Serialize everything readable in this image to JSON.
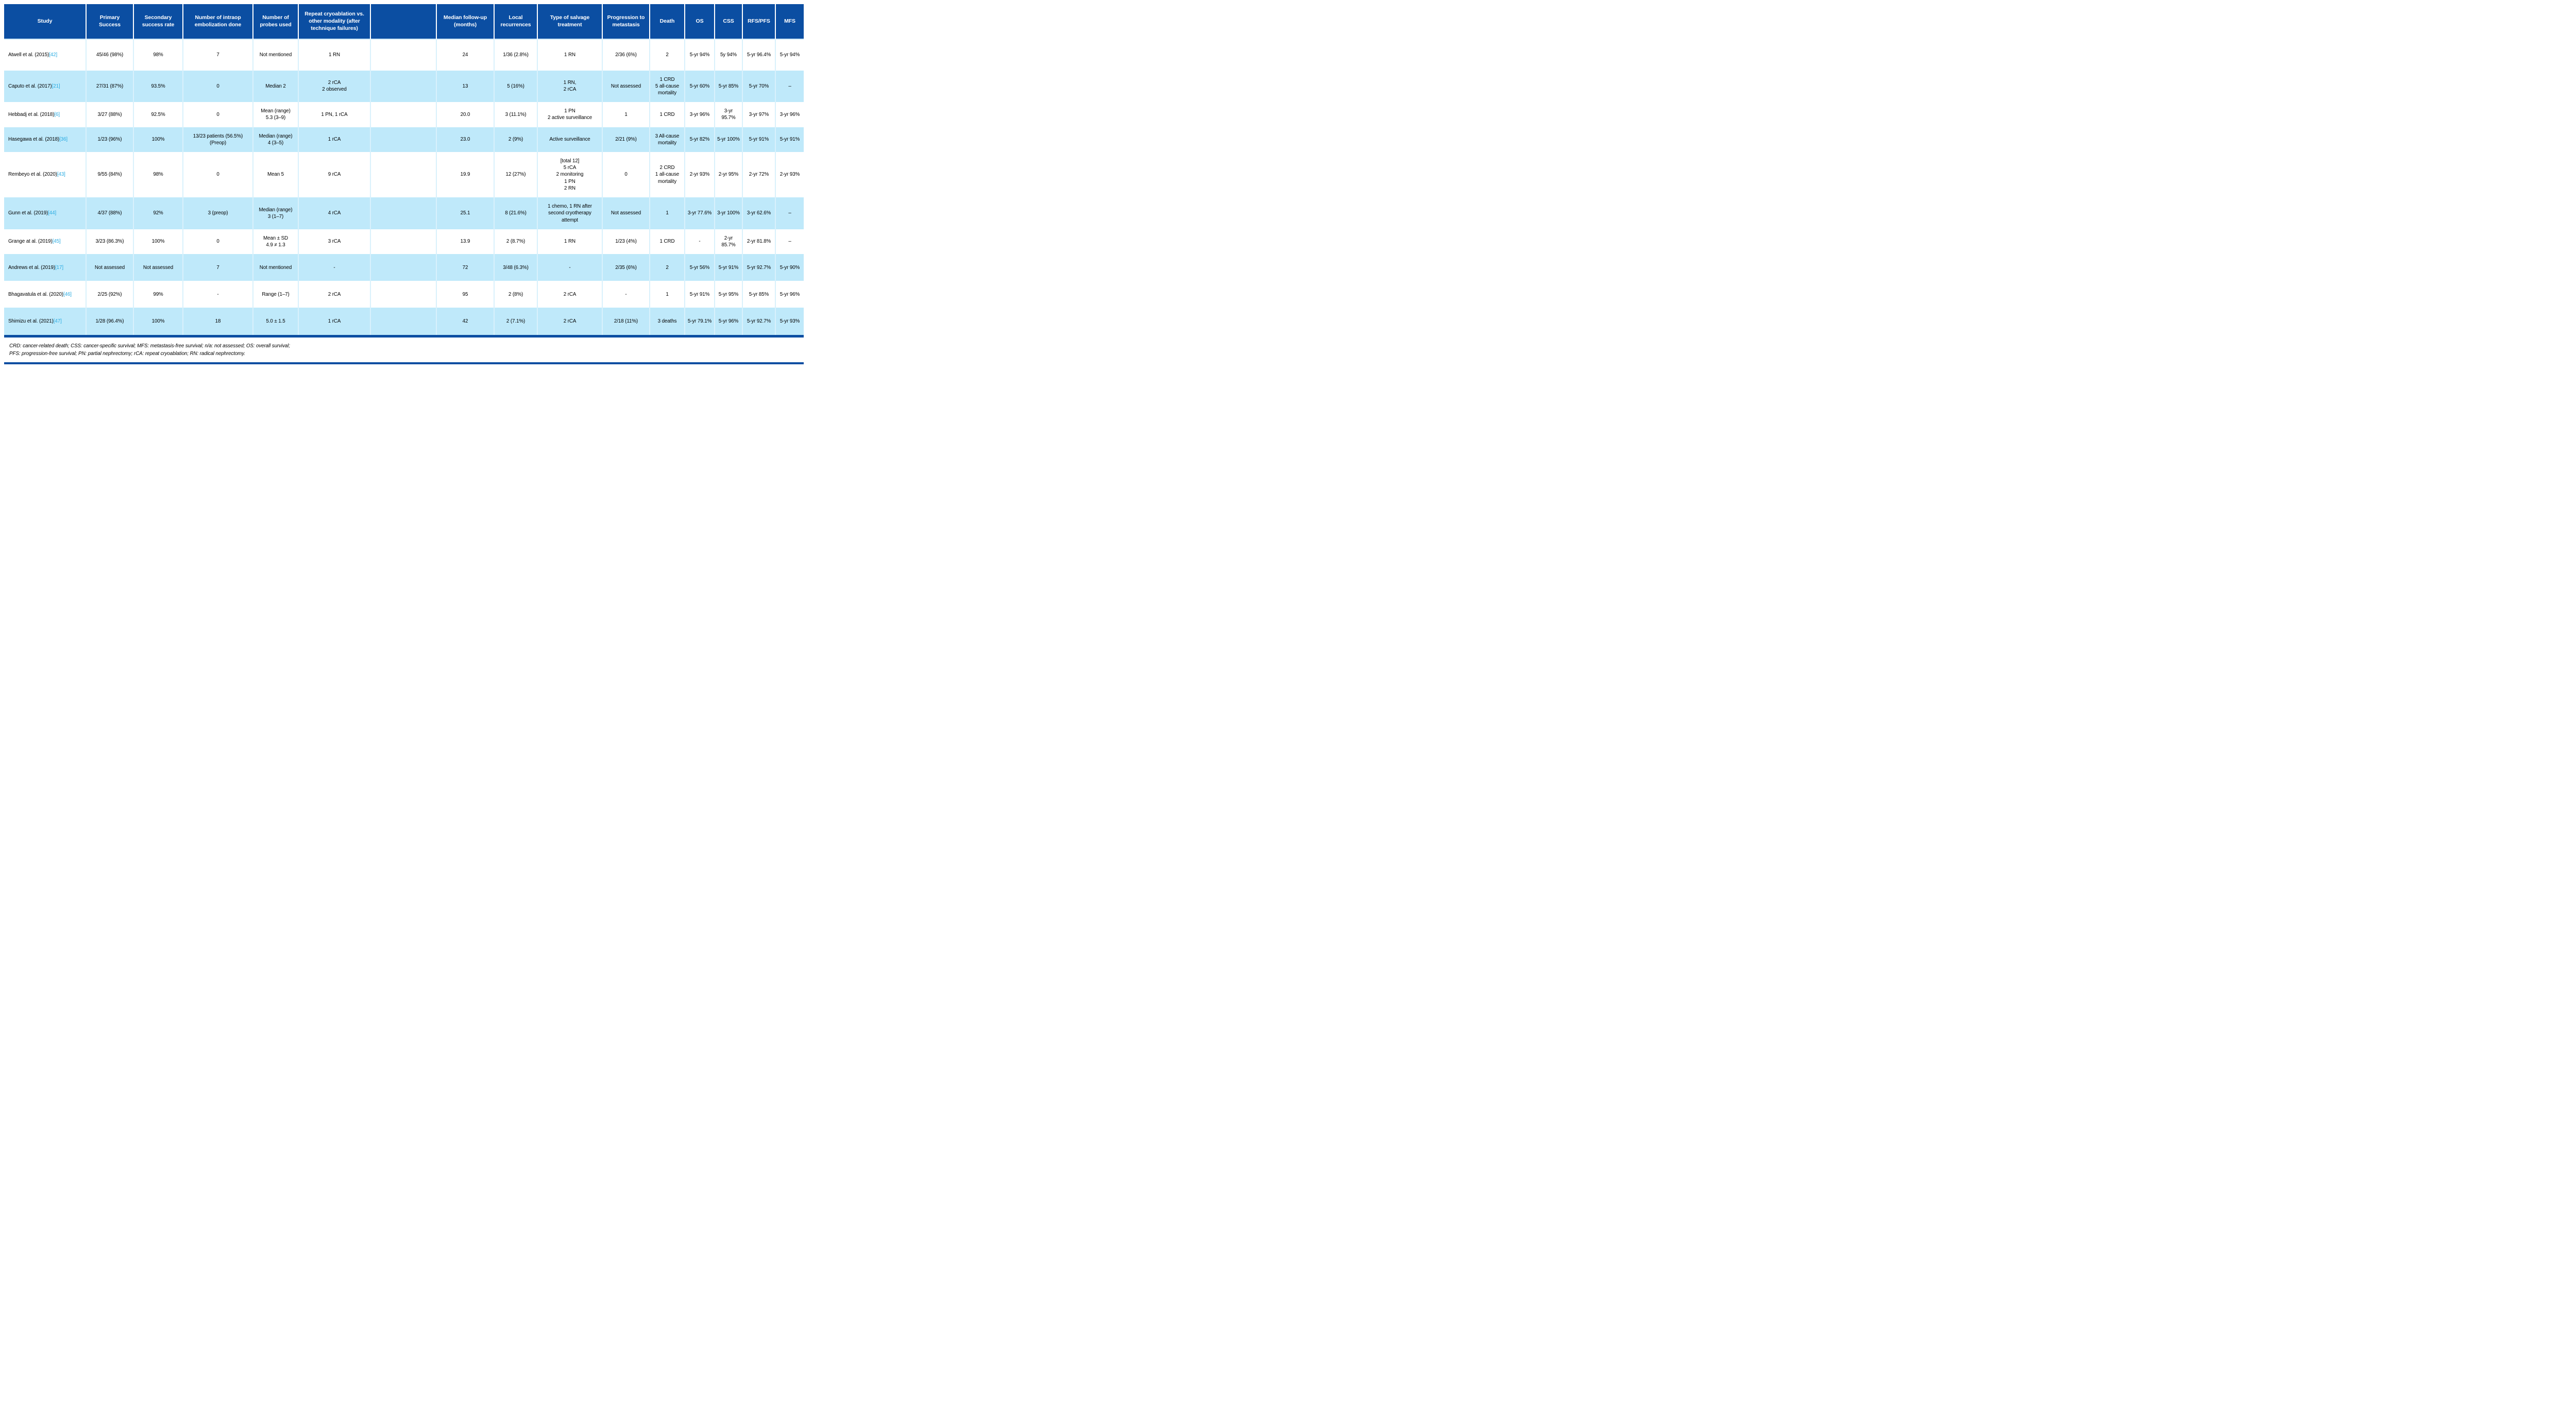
{
  "colors": {
    "header_bg": "#0b4ea2",
    "row_alt": "#bfe9fa",
    "citation": "#29abe2"
  },
  "table": {
    "columns": [
      {
        "key": "study",
        "label": "Study"
      },
      {
        "key": "primary_success",
        "label": "Primary Success"
      },
      {
        "key": "secondary_success_rate",
        "label": "Secondary success rate"
      },
      {
        "key": "intraop_embolization",
        "label": "Number of intraop embolization done"
      },
      {
        "key": "probes_used",
        "label": "Number of probes used"
      },
      {
        "key": "repeat_cryo_vs_other",
        "label": "Repeat cryoablation vs. other modality (after technique failures)"
      },
      {
        "key": "spacer",
        "label": ""
      },
      {
        "key": "median_followup_months",
        "label": "Median follow-up (months)"
      },
      {
        "key": "local_recurrences",
        "label": "Local recurrences"
      },
      {
        "key": "salvage_treatment",
        "label": "Type of salvage treatment"
      },
      {
        "key": "progression_to_metastasis",
        "label": "Progression to metastasis"
      },
      {
        "key": "death",
        "label": "Death"
      },
      {
        "key": "os",
        "label": "OS"
      },
      {
        "key": "css",
        "label": "CSS"
      },
      {
        "key": "rfs_pfs",
        "label": "RFS/PFS"
      },
      {
        "key": "mfs",
        "label": "MFS"
      }
    ],
    "rows": [
      {
        "study": "Atwell et al. (2015)",
        "citation": "[42]",
        "primary_success": "45/46 (98%)",
        "secondary_success_rate": "98%",
        "intraop_embolization": "7",
        "probes_used": "Not mentioned",
        "repeat_cryo_vs_other": "1 RN",
        "spacer": "",
        "median_followup_months": "24",
        "local_recurrences": "1/36 (2.8%)",
        "salvage_treatment": "1 RN",
        "progression_to_metastasis": "2/36 (6%)",
        "death": "2",
        "os": "5-yr 94%",
        "css": "5y 94%",
        "rfs_pfs": "5-yr 96.4%",
        "mfs": "5-yr 94%"
      },
      {
        "study": "Caputo et al. (2017)",
        "citation": "[21]",
        "primary_success": "27/31 (87%)",
        "secondary_success_rate": "93.5%",
        "intraop_embolization": "0",
        "probes_used": "Median 2",
        "repeat_cryo_vs_other": "2 rCA\n2 observed",
        "spacer": "",
        "median_followup_months": "13",
        "local_recurrences": "5 (16%)",
        "salvage_treatment": "1 RN,\n2 rCA",
        "progression_to_metastasis": "Not assessed",
        "death": "1 CRD\n5 all-cause mortality",
        "os": "5-yr 60%",
        "css": "5-yr 85%",
        "rfs_pfs": "5-yr 70%",
        "mfs": "–"
      },
      {
        "study": "Hebbadj et al. (2018)",
        "citation": "[6]",
        "primary_success": "3/27 (88%)",
        "secondary_success_rate": "92.5%",
        "intraop_embolization": "0",
        "probes_used": "Mean (range)\n5.3 (3–9)",
        "repeat_cryo_vs_other": "1 PN, 1 rCA",
        "spacer": "",
        "median_followup_months": "20.0",
        "local_recurrences": "3 (11.1%)",
        "salvage_treatment": "1 PN\n2 active surveillance",
        "progression_to_metastasis": "1",
        "death": "1 CRD",
        "os": "3-yr 96%",
        "css": "3-yr 95.7%",
        "rfs_pfs": "3-yr 97%",
        "mfs": "3-yr 96%"
      },
      {
        "study": "Hasegawa et al. (2018)",
        "citation": "[36]",
        "primary_success": "1/23 (96%)",
        "secondary_success_rate": "100%",
        "intraop_embolization": "13/23 patients (56.5%) (Preop)",
        "probes_used": "Median (range)\n4 (3–5)",
        "repeat_cryo_vs_other": "1 rCA",
        "spacer": "",
        "median_followup_months": "23.0",
        "local_recurrences": "2 (9%)",
        "salvage_treatment": "Active surveillance",
        "progression_to_metastasis": "2/21 (9%)",
        "death": "3 All-cause mortality",
        "os": "5-yr 82%",
        "css": "5-yr 100%",
        "rfs_pfs": "5-yr 91%",
        "mfs": "5-yr 91%"
      },
      {
        "study": "Rembeyo et al. (2020)",
        "citation": "[43]",
        "primary_success": "9/55 (84%)",
        "secondary_success_rate": "98%",
        "intraop_embolization": "0",
        "probes_used": "Mean 5",
        "repeat_cryo_vs_other": "9 rCA",
        "spacer": "",
        "median_followup_months": "19.9",
        "local_recurrences": "12 (27%)",
        "salvage_treatment": "[total 12]\n5 rCA\n2 monitoring\n1 PN\n2 RN",
        "progression_to_metastasis": "0",
        "death": "2 CRD\n1 all-cause mortality",
        "os": "2-yr 93%",
        "css": "2-yr 95%",
        "rfs_pfs": "2-yr 72%",
        "mfs": "2-yr 93%"
      },
      {
        "study": "Gunn et al. (2019)",
        "citation": "[44]",
        "primary_success": "4/37 (88%)",
        "secondary_success_rate": "92%",
        "intraop_embolization": "3 (preop)",
        "probes_used": "Median (range)\n3 (1–7)",
        "repeat_cryo_vs_other": "4 rCA",
        "spacer": "",
        "median_followup_months": "25.1",
        "local_recurrences": "8 (21.6%)",
        "salvage_treatment": "1 chemo, 1 RN after second cryotherapy attempt",
        "progression_to_metastasis": "Not assessed",
        "death": "1",
        "os": "3-yr 77.6%",
        "css": "3-yr 100%",
        "rfs_pfs": "3-yr 62.6%",
        "mfs": "–"
      },
      {
        "study": "Grange at al. (2019)",
        "citation": "[45]",
        "primary_success": "3/23 (86.3%)",
        "secondary_success_rate": "100%",
        "intraop_embolization": "0",
        "probes_used": "Mean ± SD\n4.9 ≠ 1.3",
        "repeat_cryo_vs_other": "3 rCA",
        "spacer": "",
        "median_followup_months": "13.9",
        "local_recurrences": "2 (8.7%)",
        "salvage_treatment": "1 RN",
        "progression_to_metastasis": "1/23 (4%)",
        "death": "1 CRD",
        "os": "-",
        "css": "2-yr 85.7%",
        "rfs_pfs": "2-yr 81.8%",
        "mfs": "–"
      },
      {
        "study": "Andrews et al. (2019)",
        "citation": "[17]",
        "primary_success": "Not assessed",
        "secondary_success_rate": "Not assessed",
        "intraop_embolization": "7",
        "probes_used": "Not mentioned",
        "repeat_cryo_vs_other": "-",
        "spacer": "",
        "median_followup_months": "72",
        "local_recurrences": "3/48 (6.3%)",
        "salvage_treatment": "-",
        "progression_to_metastasis": "2/35 (6%)",
        "death": "2",
        "os": "5-yr 56%",
        "css": "5-yr 91%",
        "rfs_pfs": "5-yr 92.7%",
        "mfs": "5-yr 90%"
      },
      {
        "study": "Bhagavatula et al. (2020)",
        "citation": "[46]",
        "primary_success": "2/25 (92%)",
        "secondary_success_rate": "99%",
        "intraop_embolization": "-",
        "probes_used": "Range (1–7)",
        "repeat_cryo_vs_other": "2 rCA",
        "spacer": "",
        "median_followup_months": "95",
        "local_recurrences": "2 (8%)",
        "salvage_treatment": "2 rCA",
        "progression_to_metastasis": "-",
        "death": "1",
        "os": "5-yr 91%",
        "css": "5-yr 95%",
        "rfs_pfs": "5-yr 85%",
        "mfs": "5-yr 96%"
      },
      {
        "study": "Shimizu et al. (2021)",
        "citation": "[47]",
        "primary_success": "1/28 (96.4%)",
        "secondary_success_rate": "100%",
        "intraop_embolization": "18",
        "probes_used": "5.0 ± 1.5",
        "repeat_cryo_vs_other": "1 rCA",
        "spacer": "",
        "median_followup_months": "42",
        "local_recurrences": "2 (7.1%)",
        "salvage_treatment": "2 rCA",
        "progression_to_metastasis": "2/18 (11%)",
        "death": "3 deaths",
        "os": "5-yr 79.1%",
        "css": "5-yr 96%",
        "rfs_pfs": "5-yr 92.7%",
        "mfs": "5-yr 93%"
      }
    ]
  },
  "footnotes": {
    "line1": "CRD: cancer-related death; CSS: cancer-specific survival; MFS: metastasis-free survival; n/a: not assessed; OS: overall survival;",
    "line2": "PFS: progression-free survival; PN: partial nephrectomy; rCA: repeat cryoablation; RN: radical nephrectomy."
  }
}
